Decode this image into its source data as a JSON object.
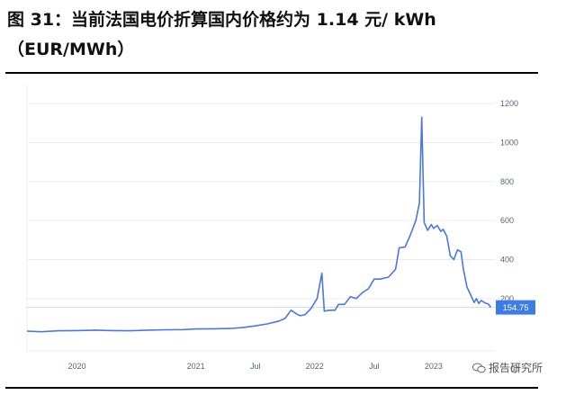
{
  "header": {
    "title_line1": "图 31：当前法国电价折算国内价格约为 1.14 元/ kWh",
    "title_line2": "（EUR/MWh）"
  },
  "watermark": {
    "text": "报告研究所",
    "icon": "wechat-icon"
  },
  "colors": {
    "line": "#4a78e0",
    "badge": "#3d7be6",
    "grid": "#e9edf1",
    "ref_line": "#c9d9f5"
  },
  "chart_data": {
    "type": "line",
    "title": "",
    "xlabel": "",
    "ylabel": "",
    "x_tick_labels": [
      "2020",
      "2021",
      "Jul",
      "2022",
      "Jul",
      "2023"
    ],
    "y_ticks": [
      200,
      400,
      600,
      800,
      1000,
      1200
    ],
    "ylim": [
      -50,
      1270
    ],
    "grid": true,
    "current_value": 154.75,
    "current_value_label": "154.75",
    "series": [
      {
        "values": [
          [
            2019.58,
            33
          ],
          [
            2019.7,
            30
          ],
          [
            2019.85,
            35
          ],
          [
            2020.0,
            36
          ],
          [
            2020.15,
            38
          ],
          [
            2020.3,
            36
          ],
          [
            2020.45,
            35
          ],
          [
            2020.6,
            38
          ],
          [
            2020.75,
            40
          ],
          [
            2020.9,
            41
          ],
          [
            2021.0,
            44
          ],
          [
            2021.15,
            45
          ],
          [
            2021.3,
            47
          ],
          [
            2021.4,
            52
          ],
          [
            2021.5,
            60
          ],
          [
            2021.6,
            70
          ],
          [
            2021.7,
            85
          ],
          [
            2021.75,
            98
          ],
          [
            2021.8,
            140
          ],
          [
            2021.85,
            120
          ],
          [
            2021.88,
            112
          ],
          [
            2021.92,
            118
          ],
          [
            2021.97,
            150
          ],
          [
            2022.02,
            200
          ],
          [
            2022.06,
            330
          ],
          [
            2022.08,
            135
          ],
          [
            2022.12,
            140
          ],
          [
            2022.17,
            140
          ],
          [
            2022.2,
            170
          ],
          [
            2022.25,
            170
          ],
          [
            2022.3,
            210
          ],
          [
            2022.35,
            200
          ],
          [
            2022.4,
            230
          ],
          [
            2022.45,
            250
          ],
          [
            2022.5,
            300
          ],
          [
            2022.55,
            300
          ],
          [
            2022.62,
            310
          ],
          [
            2022.68,
            350
          ],
          [
            2022.71,
            460
          ],
          [
            2022.76,
            465
          ],
          [
            2022.8,
            520
          ],
          [
            2022.85,
            600
          ],
          [
            2022.88,
            690
          ],
          [
            2022.9,
            1130
          ],
          [
            2022.92,
            590
          ],
          [
            2022.95,
            550
          ],
          [
            2022.98,
            580
          ],
          [
            2023.0,
            560
          ],
          [
            2023.03,
            575
          ],
          [
            2023.06,
            545
          ],
          [
            2023.08,
            555
          ],
          [
            2023.11,
            520
          ],
          [
            2023.14,
            420
          ],
          [
            2023.17,
            400
          ],
          [
            2023.2,
            450
          ],
          [
            2023.23,
            440
          ],
          [
            2023.25,
            350
          ],
          [
            2023.28,
            260
          ],
          [
            2023.31,
            220
          ],
          [
            2023.34,
            180
          ],
          [
            2023.36,
            200
          ],
          [
            2023.38,
            175
          ],
          [
            2023.4,
            190
          ],
          [
            2023.43,
            178
          ],
          [
            2023.46,
            172
          ],
          [
            2023.48,
            154.75
          ]
        ]
      }
    ]
  }
}
